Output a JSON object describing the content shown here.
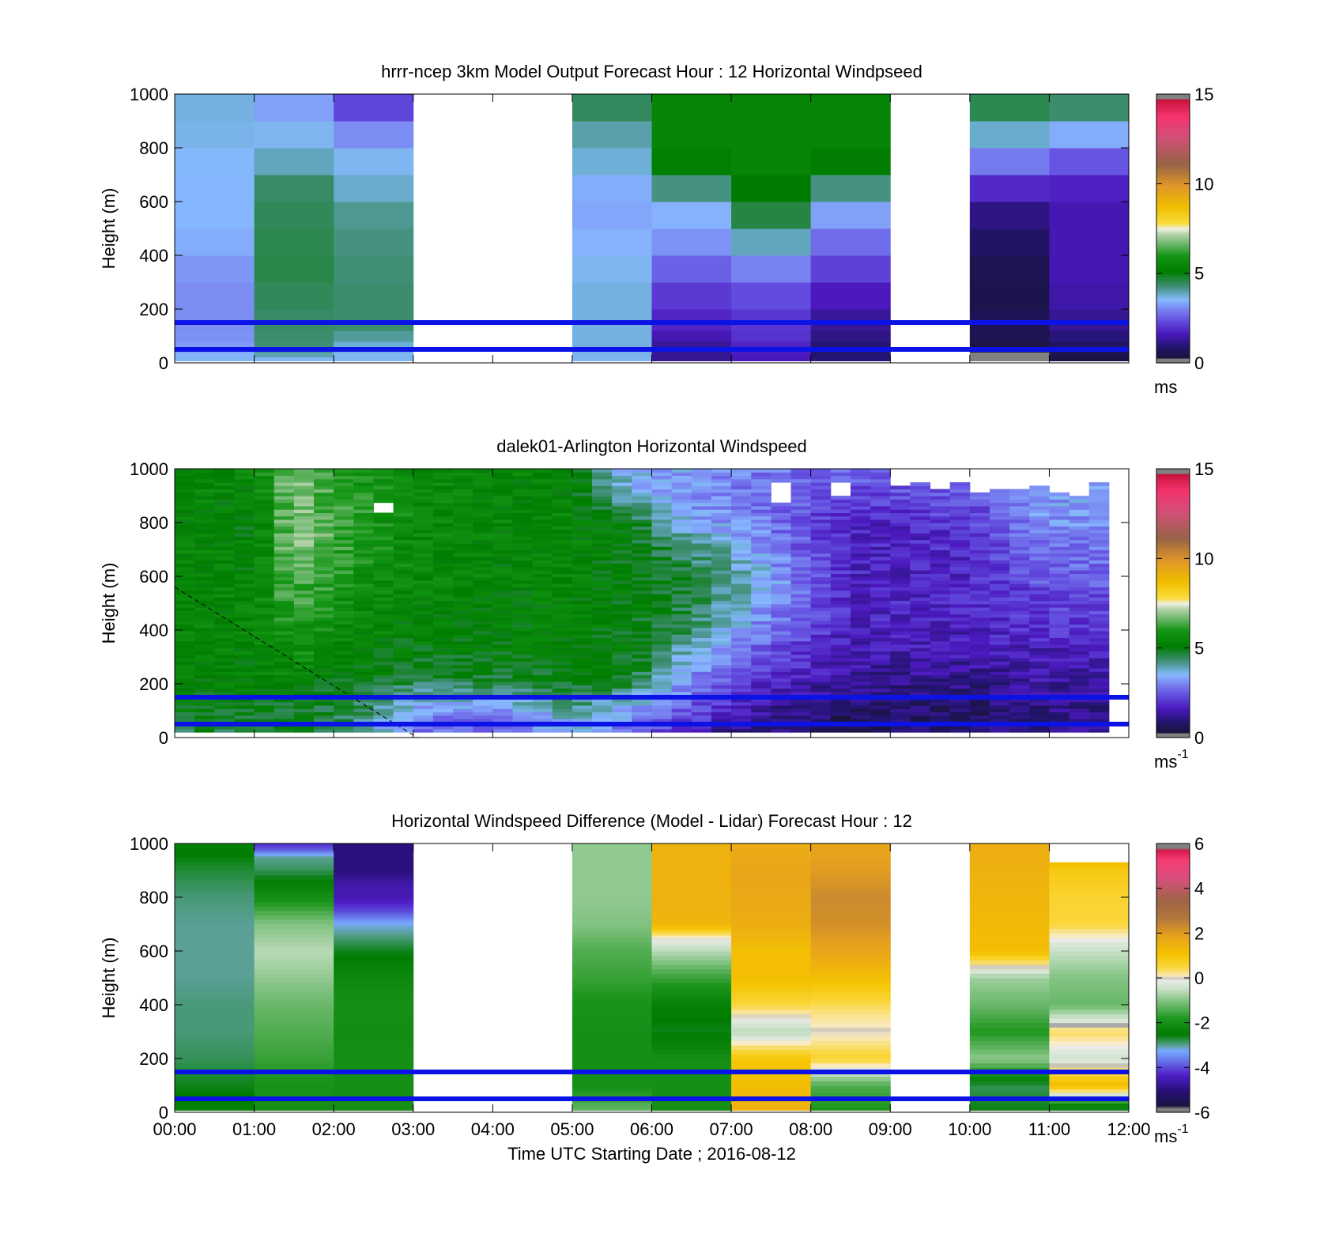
{
  "chart_data": [
    {
      "type": "heatmap",
      "title": "hrrr-ncep 3km Model Output   Forecast Hour : 12 Horizontal Windpseed",
      "ylabel": "Height (m)",
      "xlabel": "",
      "ylim": [
        0,
        1000
      ],
      "xlim": [
        0,
        12
      ],
      "yticks": [
        0,
        200,
        400,
        600,
        800,
        1000
      ],
      "xticks": [
        0,
        1,
        2,
        3,
        4,
        5,
        6,
        7,
        8,
        9,
        10,
        11,
        12
      ],
      "xtick_labels": [],
      "colorbar": {
        "min": 0,
        "max": 15,
        "ticks": [
          0,
          5,
          10,
          15
        ],
        "unit": "ms",
        "unit_sup": "",
        "scale": "speed"
      },
      "grid": false,
      "reference_lines": [
        150,
        50
      ],
      "columns": [
        {
          "x0": 0,
          "x1": 1,
          "levels": [
            20,
            40,
            80,
            120,
            200,
            300,
            400,
            500,
            600,
            700,
            800,
            900,
            1000
          ],
          "values": [
            3.6,
            3.3,
            3.2,
            3.1,
            3.1,
            3.1,
            3.3,
            3.5,
            3.5,
            3.5,
            3.6,
            3.7,
            3.7
          ]
        },
        {
          "x0": 1,
          "x1": 2,
          "levels": [
            20,
            40,
            80,
            120,
            200,
            300,
            400,
            500,
            600,
            700,
            800,
            900,
            1000
          ],
          "values": [
            3.6,
            4.3,
            4.3,
            4.4,
            4.4,
            4.6,
            4.6,
            4.5,
            4.5,
            4.3,
            3.5,
            3.7,
            2.9
          ]
        },
        {
          "x0": 2,
          "x1": 3,
          "levels": [
            20,
            40,
            80,
            120,
            200,
            300,
            400,
            500,
            600,
            700,
            800,
            900,
            1000
          ],
          "values": [
            3.6,
            3.6,
            3.9,
            4.3,
            4.4,
            4.3,
            4.3,
            4.2,
            4.1,
            3.5,
            3.7,
            2.5,
            2.0
          ]
        },
        {
          "x0": 5,
          "x1": 6,
          "levels": [
            20,
            40,
            80,
            120,
            200,
            300,
            400,
            500,
            600,
            700,
            800,
            900,
            1000
          ],
          "values": [
            3.6,
            3.7,
            3.7,
            3.7,
            3.7,
            3.7,
            3.5,
            3.4,
            3.3,
            3.5,
            4.0,
            4.0,
            4.9
          ]
        },
        {
          "x0": 6,
          "x1": 7,
          "levels": [
            20,
            40,
            80,
            120,
            200,
            300,
            400,
            500,
            600,
            700,
            800,
            900,
            1000
          ],
          "values": [
            1.3,
            1.2,
            1.4,
            1.7,
            1.9,
            2.3,
            2.9,
            3.4,
            3.5,
            5.0,
            5.4,
            5.4,
            5.4
          ]
        },
        {
          "x0": 7,
          "x1": 8,
          "levels": [
            20,
            40,
            80,
            120,
            200,
            300,
            400,
            500,
            600,
            700,
            800,
            900,
            1000
          ],
          "values": [
            1.6,
            1.7,
            1.9,
            2.1,
            2.0,
            2.7,
            3.3,
            4.5,
            4.8,
            5.4,
            5.4,
            5.4,
            5.4
          ]
        },
        {
          "x0": 8,
          "x1": 9,
          "levels": [
            20,
            40,
            80,
            120,
            200,
            300,
            400,
            500,
            600,
            700,
            800,
            900,
            1000
          ],
          "values": [
            1.0,
            0.9,
            1.0,
            1.2,
            1.4,
            1.9,
            2.5,
            3.0,
            3.6,
            4.9,
            5.4,
            5.4,
            5.4
          ]
        },
        {
          "x0": 10,
          "x1": 11,
          "levels": [
            20,
            40,
            80,
            120,
            200,
            300,
            400,
            500,
            600,
            700,
            800,
            900,
            1000
          ],
          "values": [
            0.2,
            0.3,
            0.5,
            0.6,
            0.6,
            0.4,
            0.7,
            0.9,
            1.3,
            2.4,
            3.4,
            4.2,
            4.9
          ]
        },
        {
          "x0": 11,
          "x1": 12,
          "levels": [
            20,
            40,
            80,
            120,
            200,
            300,
            400,
            500,
            600,
            700,
            800,
            900,
            1000
          ],
          "values": [
            0.4,
            0.6,
            0.9,
            1.1,
            1.4,
            1.5,
            1.6,
            1.5,
            1.6,
            1.9,
            3.0,
            3.8,
            4.9
          ]
        }
      ]
    },
    {
      "type": "heatmap",
      "title": "dalek01-Arlington  Horizontal Windspeed",
      "ylabel": "Height (m)",
      "xlabel": "",
      "ylim": [
        0,
        1000
      ],
      "xlim": [
        0,
        12
      ],
      "yticks": [
        0,
        200,
        400,
        600,
        800,
        1000
      ],
      "xticks": [
        0,
        1,
        2,
        3,
        4,
        5,
        6,
        7,
        8,
        9,
        10,
        11,
        12
      ],
      "xtick_labels": [],
      "colorbar": {
        "min": 0,
        "max": 15,
        "ticks": [
          0,
          5,
          10,
          15
        ],
        "unit": "ms",
        "unit_sup": "-1",
        "scale": "speed"
      },
      "grid": false,
      "reference_lines": [
        150,
        50
      ],
      "time_step": 0.25,
      "time_end": 11.75,
      "profile_keys": [
        0,
        1,
        1.5,
        2.25,
        3,
        4,
        5,
        5.75,
        6.5,
        7.25,
        8.5,
        10,
        11,
        11.75
      ],
      "profile_levels": [
        0,
        100,
        200,
        300,
        400,
        500,
        600,
        700,
        800,
        900,
        1000
      ],
      "profile_values": [
        [
          4.6,
          5.0,
          5.2,
          5.3,
          5.4,
          5.4,
          5.5,
          5.5,
          5.4,
          5.4,
          5.4
        ],
        [
          4.6,
          5.0,
          5.2,
          5.3,
          5.4,
          5.4,
          5.3,
          5.2,
          5.1,
          5.3,
          5.5
        ],
        [
          5.0,
          4.8,
          5.2,
          5.8,
          6.0,
          6.3,
          6.6,
          7.0,
          7.0,
          6.8,
          7.0
        ],
        [
          4.4,
          4.6,
          5.0,
          5.3,
          5.5,
          5.6,
          5.8,
          6.0,
          6.1,
          6.1,
          6.0
        ],
        [
          2.6,
          3.3,
          4.5,
          5.0,
          5.2,
          5.4,
          5.5,
          5.6,
          5.6,
          5.6,
          5.5
        ],
        [
          2.3,
          2.9,
          4.6,
          5.0,
          5.2,
          5.2,
          5.3,
          5.3,
          5.4,
          5.3,
          5.4
        ],
        [
          3.4,
          4.0,
          5.0,
          5.2,
          5.3,
          5.3,
          5.4,
          5.4,
          5.4,
          5.3,
          5.4
        ],
        [
          2.6,
          3.3,
          4.7,
          5.0,
          5.0,
          5.1,
          5.0,
          5.0,
          4.9,
          3.7,
          3.4
        ],
        [
          1.5,
          2.4,
          3.0,
          3.6,
          4.4,
          4.6,
          4.7,
          4.3,
          3.4,
          3.1,
          3.3
        ],
        [
          0.9,
          1.4,
          2.0,
          2.5,
          3.1,
          3.6,
          3.8,
          3.5,
          3.1,
          2.9,
          2.9
        ],
        [
          0.5,
          0.8,
          1.2,
          1.5,
          1.7,
          1.8,
          1.7,
          1.7,
          1.7,
          2.2,
          2.8
        ],
        [
          0.8,
          0.8,
          1.1,
          1.5,
          1.7,
          1.8,
          1.8,
          1.9,
          2.1,
          2.4,
          2.9
        ],
        [
          1.3,
          1.1,
          1.4,
          1.6,
          2.0,
          2.2,
          2.6,
          2.9,
          3.2,
          3.3,
          3.4
        ],
        [
          1.4,
          1.1,
          1.3,
          1.6,
          2.0,
          2.3,
          2.6,
          2.8,
          3.1,
          3.3,
          3.4
        ]
      ],
      "bins": 78,
      "gap_cells": [
        [
          10,
          0.84,
          0.88
        ],
        [
          30,
          0.88,
          0.96
        ],
        [
          33,
          0.9,
          0.96
        ],
        [
          36,
          0.94,
          0.96
        ],
        [
          38,
          0.93,
          0.96
        ],
        [
          40,
          0.92,
          0.96
        ],
        [
          41,
          0.93,
          0.96
        ],
        [
          42,
          0.93,
          0.96
        ],
        [
          43,
          0.94,
          0.96
        ],
        [
          44,
          0.92,
          0.96
        ],
        [
          45,
          0.91,
          0.96
        ]
      ],
      "dashed_line": {
        "x": [
          0,
          3.05
        ],
        "y": [
          560,
          0
        ]
      }
    },
    {
      "type": "heatmap",
      "title": "Horizontal Windspeed Difference (Model - Lidar) Forecast Hour : 12",
      "ylabel": "Height (m)",
      "xlabel": "Time UTC  Starting Date ; 2016-08-12",
      "ylim": [
        0,
        1000
      ],
      "xlim": [
        0,
        12
      ],
      "yticks": [
        0,
        200,
        400,
        600,
        800,
        1000
      ],
      "xticks": [
        0,
        1,
        2,
        3,
        4,
        5,
        6,
        7,
        8,
        9,
        10,
        11,
        12
      ],
      "xtick_labels": [
        "00:00",
        "01:00",
        "02:00",
        "03:00",
        "04:00",
        "05:00",
        "06:00",
        "07:00",
        "08:00",
        "09:00",
        "10:00",
        "11:00",
        "12:00"
      ],
      "colorbar": {
        "min": -6,
        "max": 6,
        "ticks": [
          -6,
          -4,
          -2,
          0,
          2,
          4,
          6
        ],
        "unit": "ms",
        "unit_sup": "-1",
        "scale": "diff"
      },
      "grid": false,
      "reference_lines": [
        150,
        50
      ],
      "columns": [
        {
          "x0": 0,
          "x1": 1,
          "levels": [
            20,
            100,
            200,
            300,
            400,
            500,
            600,
            700,
            800,
            900,
            1000
          ],
          "values": [
            -2.4,
            -2.6,
            -2.8,
            -2.9,
            -2.9,
            -3.0,
            -3.0,
            -3.0,
            -2.9,
            -2.7,
            -2.4
          ]
        },
        {
          "x0": 1,
          "x1": 2,
          "levels": [
            20,
            100,
            200,
            300,
            400,
            500,
            600,
            700,
            800,
            900,
            950,
            980,
            1000
          ],
          "values": [
            -2.0,
            -1.9,
            -1.6,
            -1.4,
            -1.2,
            -0.9,
            -0.6,
            -1.0,
            -2.0,
            -2.8,
            -3.0,
            -3.9,
            -4.2
          ]
        },
        {
          "x0": 2,
          "x1": 3,
          "levels": [
            20,
            100,
            200,
            300,
            400,
            500,
            600,
            650,
            700,
            750,
            800,
            850,
            900,
            1000
          ],
          "values": [
            -2.0,
            -2.0,
            -2.0,
            -2.1,
            -2.0,
            -2.2,
            -2.6,
            -2.9,
            -3.2,
            -4.0,
            -4.5,
            -4.6,
            -5.0,
            -5.0
          ]
        },
        {
          "x0": 5,
          "x1": 6,
          "levels": [
            20,
            100,
            200,
            300,
            400,
            500,
            600,
            700,
            800,
            900,
            1000
          ],
          "values": [
            -1.3,
            -2.0,
            -2.0,
            -2.0,
            -1.9,
            -1.6,
            -1.4,
            -1.0,
            -0.9,
            -0.9,
            -0.9
          ]
        },
        {
          "x0": 6,
          "x1": 7,
          "levels": [
            20,
            100,
            200,
            300,
            400,
            500,
            600,
            650,
            700,
            800,
            900,
            1000
          ],
          "values": [
            -2.0,
            -2.0,
            -2.0,
            -2.6,
            -2.4,
            -1.6,
            -0.6,
            0.0,
            1.4,
            1.5,
            1.5,
            1.5
          ]
        },
        {
          "x0": 7,
          "x1": 8,
          "levels": [
            20,
            100,
            200,
            300,
            400,
            500,
            600,
            700,
            800,
            900,
            1000
          ],
          "values": [
            1.5,
            1.2,
            1.0,
            -0.6,
            0.5,
            1.2,
            1.2,
            1.6,
            1.7,
            1.8,
            1.6
          ]
        },
        {
          "x0": 8,
          "x1": 9,
          "levels": [
            20,
            100,
            200,
            300,
            400,
            500,
            600,
            700,
            800,
            900,
            1000
          ],
          "values": [
            -1.8,
            -1.4,
            0.6,
            0.0,
            0.4,
            1.2,
            1.8,
            2.2,
            2.3,
            2.0,
            1.8
          ]
        },
        {
          "x0": 10,
          "x1": 11,
          "levels": [
            20,
            100,
            200,
            300,
            400,
            500,
            600,
            700,
            800,
            900,
            1000
          ],
          "values": [
            -2.6,
            -2.8,
            -0.9,
            -1.8,
            -1.2,
            -0.8,
            1.2,
            1.3,
            1.4,
            1.5,
            1.6
          ]
        },
        {
          "x0": 11,
          "x1": 12,
          "levels": [
            20,
            100,
            200,
            300,
            400,
            500,
            600,
            700,
            800,
            900,
            930
          ],
          "values": [
            -2.6,
            1.3,
            -0.4,
            0.4,
            -1.2,
            -1.0,
            -0.5,
            0.5,
            0.6,
            0.9,
            1.2
          ]
        }
      ]
    }
  ]
}
